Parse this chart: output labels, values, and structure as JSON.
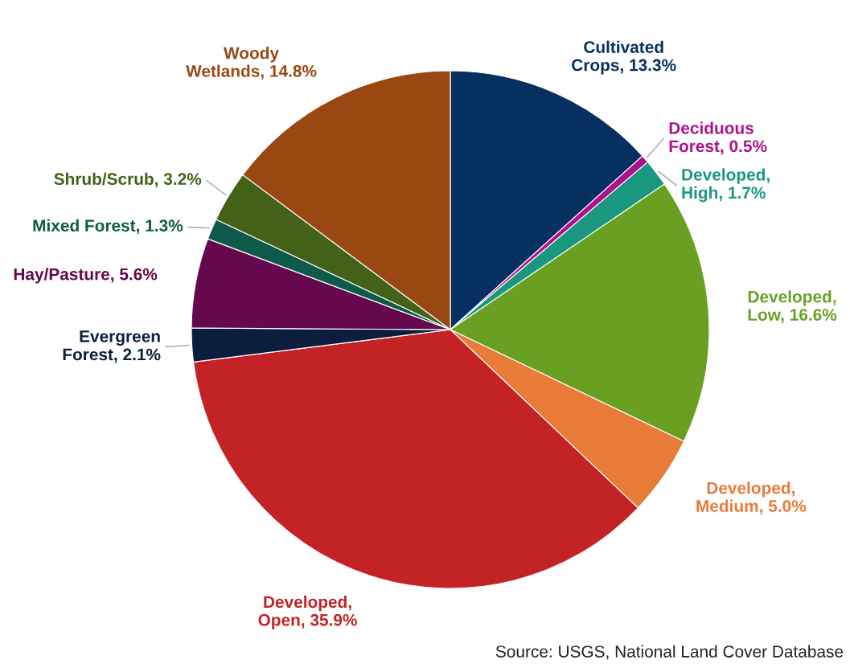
{
  "chart_data": {
    "type": "pie",
    "categories": [
      "Cultivated\nCrops",
      "Deciduous\nForest",
      "Developed,\nHigh",
      "Developed,\nLow",
      "Developed,\nMedium",
      "Developed,\nOpen",
      "Evergreen\nForest",
      "Hay/Pasture",
      "Mixed Forest",
      "Shrub/Scrub",
      "Woody\nWetlands"
    ],
    "values": [
      13.3,
      0.5,
      1.7,
      16.6,
      5.0,
      35.9,
      2.1,
      5.6,
      1.3,
      3.2,
      14.8
    ],
    "value_labels": [
      "13.3%",
      "0.5%",
      "1.7%",
      "16.6%",
      "5.0%",
      "35.9%",
      "2.1%",
      "5.6%",
      "1.3%",
      "3.2%",
      "14.8%"
    ],
    "colors": [
      "#06305f",
      "#b0108a",
      "#19977f",
      "#6aa022",
      "#e97b38",
      "#c42325",
      "#0b1f3d",
      "#65084d",
      "#0d5a4a",
      "#436117",
      "#994812"
    ],
    "annotations": [
      "Source: USGS, National Land Cover Database"
    ]
  }
}
